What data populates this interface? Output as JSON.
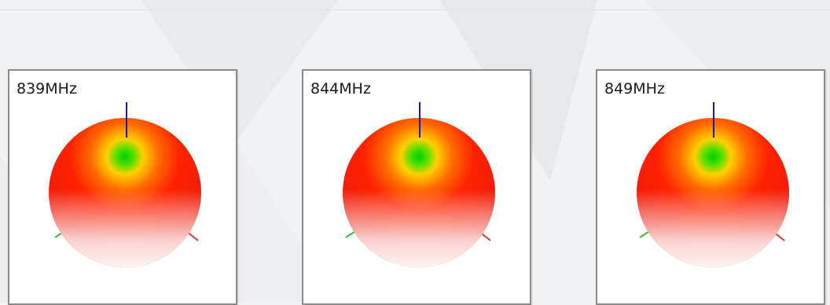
{
  "panels": [
    {
      "label": "839MHz"
    },
    {
      "label": "844MHz"
    },
    {
      "label": "849MHz"
    }
  ],
  "colors": {
    "max_gain": "#ff0000",
    "mid_gain": "#ffd000",
    "low_gain": "#00d000",
    "min_gain": "#ffffff",
    "z_axis": "#1a1aa0",
    "x_axis": "#e03030",
    "y_axis": "#30c030"
  }
}
